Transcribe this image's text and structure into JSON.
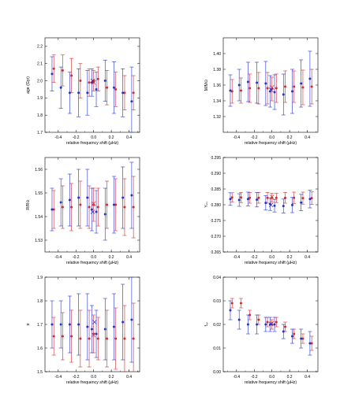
{
  "colors": {
    "red": "#d42a2a",
    "blue": "#2233cc",
    "axis": "#000000"
  },
  "chart_data": [
    {
      "type": "scatter",
      "xlabel": "relative frequency shift (μHz)",
      "ylabel": "age (Gyr)",
      "xlim": [
        -0.55,
        0.52
      ],
      "ylim": [
        1.7,
        2.25
      ],
      "xticks": [
        -0.4,
        -0.2,
        0.0,
        0.2,
        0.4
      ],
      "xtick_labels": [
        "-0.4",
        "-0.2",
        "0.0",
        "0.2",
        "0.4"
      ],
      "yticks": [
        1.7,
        1.8,
        1.9,
        2.0,
        2.1,
        2.2
      ],
      "ytick_labels": [
        "1.7",
        "1.8",
        "1.9",
        "2.0",
        "2.1",
        "2.2"
      ],
      "series": [
        {
          "color": "red",
          "x": [
            -0.45,
            -0.35,
            -0.25,
            -0.15,
            -0.05,
            0,
            0.05,
            0.15,
            0.25,
            0.35,
            0.45
          ],
          "y": [
            2.07,
            2.06,
            2.03,
            2.0,
            1.99,
            2.0,
            2.01,
            1.96,
            1.95,
            1.93,
            1.93
          ],
          "err": [
            0.08,
            0.09,
            0.1,
            0.1,
            0.08,
            0.06,
            0.07,
            0.1,
            0.1,
            0.1,
            0.1
          ]
        },
        {
          "color": "blue",
          "x": [
            -0.47,
            -0.37,
            -0.27,
            -0.17,
            -0.07,
            -0.02,
            0.03,
            0.13,
            0.23,
            0.33,
            0.43
          ],
          "y": [
            2.04,
            1.96,
            1.93,
            1.93,
            1.93,
            1.99,
            1.95,
            2.0,
            1.96,
            1.93,
            1.88
          ],
          "err": [
            0.1,
            0.12,
            0.12,
            0.14,
            0.13,
            0.08,
            0.1,
            0.12,
            0.15,
            0.14,
            0.2
          ]
        }
      ],
      "markers": [
        {
          "color": "red",
          "symbol": "x",
          "x": 0.0,
          "y": 1.99
        },
        {
          "color": "blue",
          "symbol": "x",
          "x": -0.01,
          "y": 2.0
        }
      ]
    },
    {
      "type": "scatter",
      "xlabel": "relative frequency shift (μHz)",
      "ylabel": "M/M⊙",
      "xlim": [
        -0.55,
        0.52
      ],
      "ylim": [
        1.3,
        1.42
      ],
      "xticks": [
        -0.4,
        -0.2,
        0.0,
        0.2,
        0.4
      ],
      "xtick_labels": [
        "-0.4",
        "-0.2",
        "0.0",
        "0.2",
        "0.4"
      ],
      "yticks": [
        1.32,
        1.34,
        1.36,
        1.38,
        1.4
      ],
      "ytick_labels": [
        "1.32",
        "1.34",
        "1.36",
        "1.38",
        "1.40"
      ],
      "series": [
        {
          "color": "red",
          "x": [
            -0.45,
            -0.35,
            -0.25,
            -0.15,
            -0.05,
            0,
            0.05,
            0.15,
            0.25,
            0.35,
            0.45
          ],
          "y": [
            1.352,
            1.353,
            1.356,
            1.356,
            1.356,
            1.355,
            1.356,
            1.358,
            1.358,
            1.357,
            1.358
          ],
          "err": [
            0.015,
            0.016,
            0.018,
            0.02,
            0.02,
            0.015,
            0.018,
            0.02,
            0.02,
            0.022,
            0.022
          ]
        },
        {
          "color": "blue",
          "x": [
            -0.47,
            -0.37,
            -0.27,
            -0.17,
            -0.07,
            -0.02,
            0.03,
            0.13,
            0.23,
            0.33,
            0.43
          ],
          "y": [
            1.353,
            1.36,
            1.364,
            1.363,
            1.362,
            1.352,
            1.351,
            1.348,
            1.352,
            1.362,
            1.368
          ],
          "err": [
            0.02,
            0.02,
            0.025,
            0.026,
            0.028,
            0.02,
            0.022,
            0.026,
            0.028,
            0.03,
            0.035
          ]
        }
      ],
      "markers": [
        {
          "color": "red",
          "symbol": "x",
          "x": 0.0,
          "y": 1.357
        },
        {
          "color": "blue",
          "symbol": "x",
          "x": -0.01,
          "y": 1.354
        }
      ]
    },
    {
      "type": "scatter",
      "xlabel": "relative frequency shift (μHz)",
      "ylabel": "R/R⊙",
      "xlim": [
        -0.55,
        0.52
      ],
      "ylim": [
        1.525,
        1.565
      ],
      "xticks": [
        -0.4,
        -0.2,
        0.0,
        0.2,
        0.4
      ],
      "xtick_labels": [
        "-0.4",
        "-0.2",
        "0.0",
        "0.2",
        "0.4"
      ],
      "yticks": [
        1.53,
        1.54,
        1.55,
        1.56
      ],
      "ytick_labels": [
        "1.53",
        "1.54",
        "1.55",
        "1.56"
      ],
      "series": [
        {
          "color": "red",
          "x": [
            -0.45,
            -0.35,
            -0.25,
            -0.15,
            -0.05,
            0,
            0.05,
            0.15,
            0.25,
            0.35,
            0.45
          ],
          "y": [
            1.543,
            1.544,
            1.544,
            1.545,
            1.544,
            1.545,
            1.544,
            1.545,
            1.545,
            1.544,
            1.544
          ],
          "err": [
            0.008,
            0.009,
            0.01,
            0.01,
            0.009,
            0.007,
            0.008,
            0.01,
            0.011,
            0.012,
            0.013
          ]
        },
        {
          "color": "blue",
          "x": [
            -0.47,
            -0.37,
            -0.27,
            -0.17,
            -0.07,
            -0.02,
            0.03,
            0.13,
            0.23,
            0.33,
            0.43
          ],
          "y": [
            1.543,
            1.546,
            1.547,
            1.548,
            1.548,
            1.543,
            1.542,
            1.541,
            1.545,
            1.548,
            1.549
          ],
          "err": [
            0.009,
            0.01,
            0.011,
            0.012,
            0.012,
            0.009,
            0.009,
            0.011,
            0.012,
            0.013,
            0.014
          ]
        }
      ],
      "markers": [
        {
          "color": "red",
          "symbol": "x",
          "x": 0.0,
          "y": 1.5455
        },
        {
          "color": "blue",
          "symbol": "x",
          "x": -0.01,
          "y": 1.542
        }
      ]
    },
    {
      "type": "scatter",
      "xlabel": "relative frequency shift (μHz)",
      "ylabel": "Yᵢₙᵢ",
      "xlim": [
        -0.55,
        0.52
      ],
      "ylim": [
        0.265,
        0.295
      ],
      "xticks": [
        -0.4,
        -0.2,
        0.0,
        0.2,
        0.4
      ],
      "xtick_labels": [
        "-0.4",
        "-0.2",
        "0.0",
        "0.2",
        "0.4"
      ],
      "yticks": [
        0.265,
        0.27,
        0.275,
        0.28,
        0.285,
        0.29,
        0.295
      ],
      "ytick_labels": [
        "0.265",
        "0.270",
        "0.275",
        "0.280",
        "0.285",
        "0.290",
        "0.295"
      ],
      "series": [
        {
          "color": "red",
          "x": [
            -0.45,
            -0.35,
            -0.25,
            -0.15,
            -0.05,
            0,
            0.05,
            0.15,
            0.25,
            0.35,
            0.45
          ],
          "y": [
            0.2823,
            0.2823,
            0.2822,
            0.2822,
            0.2822,
            0.2822,
            0.2822,
            0.2822,
            0.2822,
            0.2821,
            0.2821
          ],
          "err": [
            0.0015,
            0.0016,
            0.0017,
            0.0017,
            0.0017,
            0.0014,
            0.0015,
            0.0017,
            0.0018,
            0.0019,
            0.002
          ]
        },
        {
          "color": "blue",
          "x": [
            -0.47,
            -0.37,
            -0.27,
            -0.17,
            -0.07,
            -0.02,
            0.03,
            0.13,
            0.23,
            0.33,
            0.43
          ],
          "y": [
            0.2818,
            0.2815,
            0.2818,
            0.2816,
            0.2806,
            0.2802,
            0.2797,
            0.2796,
            0.2799,
            0.2807,
            0.2818
          ],
          "err": [
            0.002,
            0.002,
            0.0022,
            0.0023,
            0.0023,
            0.002,
            0.002,
            0.0022,
            0.0024,
            0.0026,
            0.0028
          ]
        }
      ],
      "markers": [
        {
          "color": "red",
          "symbol": "x",
          "x": 0.0,
          "y": 0.2825
        },
        {
          "color": "blue",
          "symbol": "x",
          "x": -0.01,
          "y": 0.2799
        }
      ]
    },
    {
      "type": "scatter",
      "xlabel": "relative frequency shift (μHz)",
      "ylabel": "α",
      "xlim": [
        -0.55,
        0.52
      ],
      "ylim": [
        1.5,
        1.9
      ],
      "xticks": [
        -0.4,
        -0.2,
        0.0,
        0.2,
        0.4
      ],
      "xtick_labels": [
        "-0.4",
        "-0.2",
        "0.0",
        "0.2",
        "0.4"
      ],
      "yticks": [
        1.5,
        1.6,
        1.7,
        1.8,
        1.9
      ],
      "ytick_labels": [
        "1.5",
        "1.6",
        "1.7",
        "1.8",
        "1.9"
      ],
      "series": [
        {
          "color": "red",
          "x": [
            -0.45,
            -0.35,
            -0.25,
            -0.15,
            -0.05,
            0,
            0.05,
            0.15,
            0.25,
            0.35,
            0.45
          ],
          "y": [
            1.65,
            1.65,
            1.65,
            1.64,
            1.64,
            1.66,
            1.64,
            1.64,
            1.64,
            1.64,
            1.64
          ],
          "err": [
            0.08,
            0.1,
            0.11,
            0.12,
            0.12,
            0.08,
            0.09,
            0.12,
            0.13,
            0.14,
            0.15
          ]
        },
        {
          "color": "blue",
          "x": [
            -0.47,
            -0.37,
            -0.27,
            -0.17,
            -0.07,
            -0.02,
            0.03,
            0.13,
            0.23,
            0.33,
            0.43
          ],
          "y": [
            1.7,
            1.7,
            1.7,
            1.7,
            1.69,
            1.68,
            1.66,
            1.68,
            1.69,
            1.71,
            1.72
          ],
          "err": [
            0.1,
            0.1,
            0.12,
            0.13,
            0.14,
            0.1,
            0.1,
            0.13,
            0.14,
            0.16,
            0.18
          ]
        }
      ],
      "markers": [
        {
          "color": "red",
          "symbol": "x",
          "x": 0.0,
          "y": 1.655
        },
        {
          "color": "blue",
          "symbol": "x",
          "x": 0.01,
          "y": 1.71
        }
      ]
    },
    {
      "type": "scatter",
      "xlabel": "relative frequency shift (μHz)",
      "ylabel": "fₒᵥ",
      "xlim": [
        -0.55,
        0.52
      ],
      "ylim": [
        0.0,
        0.04
      ],
      "xticks": [
        -0.4,
        -0.2,
        0.0,
        0.2,
        0.4
      ],
      "xtick_labels": [
        "-0.4",
        "-0.2",
        "0.0",
        "0.2",
        "0.4"
      ],
      "yticks": [
        0.0,
        0.01,
        0.02,
        0.03,
        0.04
      ],
      "ytick_labels": [
        "0.00",
        "0.01",
        "0.02",
        "0.03",
        "0.04"
      ],
      "series": [
        {
          "color": "red",
          "x": [
            -0.45,
            -0.35,
            -0.25,
            -0.15,
            -0.05,
            0,
            0.05,
            0.15,
            0.25,
            0.35,
            0.45
          ],
          "y": [
            0.029,
            0.029,
            0.024,
            0.022,
            0.021,
            0.02,
            0.021,
            0.019,
            0.016,
            0.014,
            0.012
          ],
          "err": [
            0.002,
            0.002,
            0.002,
            0.002,
            0.002,
            0.002,
            0.002,
            0.002,
            0.002,
            0.002,
            0.003
          ]
        },
        {
          "color": "blue",
          "x": [
            -0.47,
            -0.37,
            -0.27,
            -0.17,
            -0.07,
            -0.02,
            0.03,
            0.13,
            0.23,
            0.33,
            0.43
          ],
          "y": [
            0.026,
            0.022,
            0.02,
            0.02,
            0.02,
            0.02,
            0.02,
            0.017,
            0.015,
            0.014,
            0.012
          ],
          "err": [
            0.004,
            0.004,
            0.004,
            0.004,
            0.003,
            0.003,
            0.003,
            0.003,
            0.003,
            0.004,
            0.005
          ]
        }
      ],
      "markers": [
        {
          "color": "red",
          "symbol": "x",
          "x": 0.0,
          "y": 0.0205
        },
        {
          "color": "blue",
          "symbol": "x",
          "x": -0.01,
          "y": 0.0202
        }
      ]
    }
  ]
}
